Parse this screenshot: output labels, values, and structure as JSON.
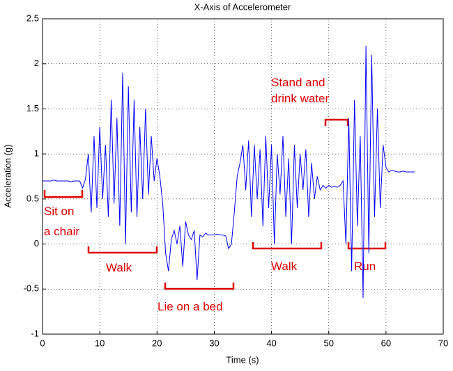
{
  "chart_data": {
    "type": "line",
    "title": "X-Axis of Accelerometer",
    "xlabel": "Time (s)",
    "ylabel": "Acceleration (g)",
    "x": [
      0,
      0.5,
      1,
      1.5,
      2,
      2.5,
      3,
      3.5,
      4,
      4.5,
      5,
      5.5,
      6,
      6.5,
      7,
      7.5,
      8,
      8.5,
      9,
      9.5,
      10,
      10.5,
      11,
      11.5,
      12,
      12.5,
      13,
      13.5,
      14,
      14.5,
      15,
      15.5,
      16,
      16.5,
      17,
      17.5,
      18,
      18.5,
      19,
      19.5,
      20,
      20.5,
      21,
      21.5,
      22,
      22.5,
      23,
      23.5,
      24,
      24.5,
      25,
      25.5,
      26,
      26.5,
      27,
      27.5,
      28,
      28.5,
      29,
      29.5,
      30,
      30.5,
      31,
      31.5,
      32,
      32.5,
      33,
      33.5,
      34,
      34.5,
      35,
      35.5,
      36,
      36.5,
      37,
      37.5,
      38,
      38.5,
      39,
      39.5,
      40,
      40.5,
      41,
      41.5,
      42,
      42.5,
      43,
      43.5,
      44,
      44.5,
      45,
      45.5,
      46,
      46.5,
      47,
      47.5,
      48,
      48.5,
      49,
      49.5,
      50,
      50.5,
      51,
      51.5,
      52,
      52.5,
      53,
      53.5,
      54,
      54.5,
      55,
      55.5,
      56,
      56.5,
      57,
      57.5,
      58,
      58.5,
      59,
      59.5,
      60,
      60.5,
      61,
      61.5,
      62,
      62.5,
      63,
      63.5,
      64,
      64.5,
      65
    ],
    "series": [
      {
        "color": "#0000ff",
        "values": [
          0.7,
          0.7,
          0.7,
          0.7,
          0.71,
          0.7,
          0.7,
          0.7,
          0.7,
          0.7,
          0.69,
          0.7,
          0.7,
          0.7,
          0.62,
          0.72,
          1.0,
          0.35,
          1.2,
          0.4,
          1.3,
          0.5,
          1.1,
          0.3,
          1.6,
          0.45,
          1.4,
          0.2,
          1.9,
          0.0,
          1.75,
          0.35,
          1.6,
          0.3,
          1.3,
          0.5,
          1.5,
          0.55,
          1.2,
          0.7,
          0.95,
          0.75,
          0.45,
          -0.1,
          -0.3,
          0.05,
          0.15,
          0.0,
          0.2,
          -0.25,
          0.25,
          0.1,
          0.05,
          0.15,
          -0.4,
          0.1,
          0.08,
          0.12,
          0.1,
          0.1,
          0.1,
          0.11,
          0.1,
          0.1,
          0.09,
          -0.05,
          0.0,
          0.35,
          0.75,
          0.9,
          1.1,
          0.6,
          1.15,
          0.3,
          1.1,
          0.5,
          1.05,
          0.2,
          1.2,
          0.4,
          1.1,
          0.0,
          1.0,
          0.55,
          1.2,
          0.3,
          0.95,
          0.0,
          1.1,
          0.4,
          1.0,
          0.6,
          1.05,
          0.3,
          0.9,
          0.5,
          0.75,
          0.6,
          0.65,
          0.62,
          0.65,
          0.63,
          0.64,
          0.63,
          0.65,
          0.7,
          0.0,
          1.4,
          -0.3,
          1.6,
          0.2,
          1.2,
          -0.6,
          2.2,
          -0.1,
          2.1,
          0.3,
          1.5,
          0.4,
          1.1,
          0.85,
          0.8,
          0.82,
          0.81,
          0.8,
          0.8,
          0.81,
          0.8,
          0.8,
          0.8,
          0.8
        ]
      }
    ],
    "xlim": [
      0,
      70
    ],
    "xticks": [
      0,
      10,
      20,
      30,
      40,
      50,
      60,
      70
    ],
    "ylim": [
      -1,
      2.5
    ],
    "yticks": [
      -1,
      -0.5,
      0,
      0.5,
      1,
      1.5,
      2,
      2.5
    ],
    "grid": true,
    "annotations": [
      [
        "Sit on",
        "a chair"
      ],
      [
        "Walk"
      ],
      [
        "Lie on a bed"
      ],
      [
        "Walk"
      ],
      [
        "Stand and",
        "drink water"
      ],
      [
        "Run"
      ]
    ]
  }
}
